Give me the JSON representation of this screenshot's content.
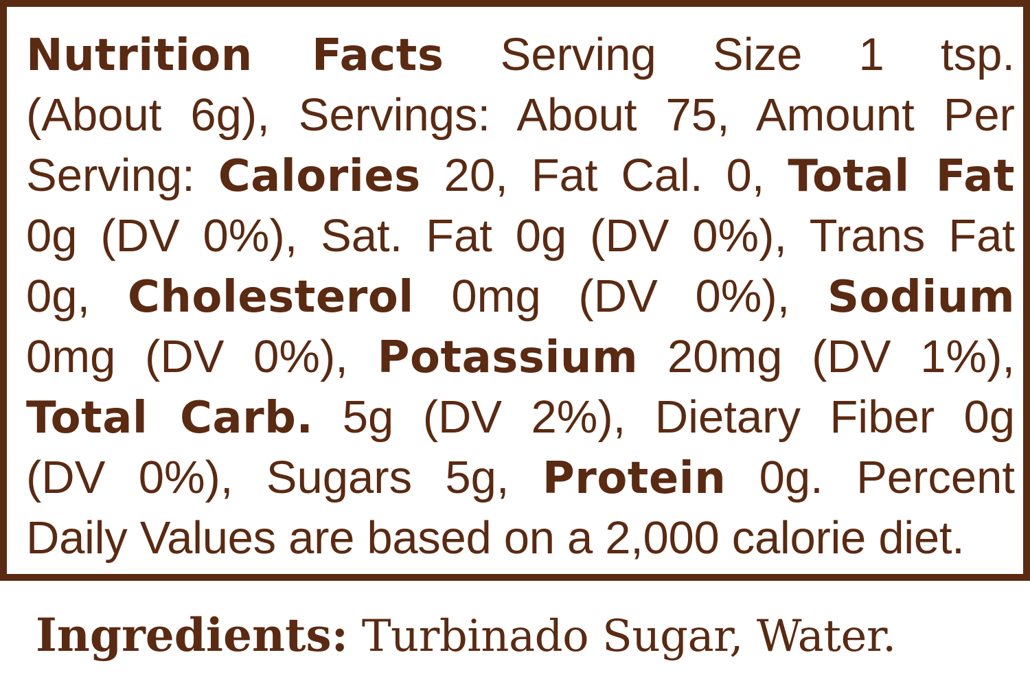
{
  "nutrition_panel": {
    "lines": [
      [
        {
          "text": "Nutrition Facts",
          "bold": true
        },
        {
          "text": " Serving Size 1 tsp.",
          "bold": false
        }
      ],
      [
        {
          "text": "(About 6g), Servings: About 75, Amount Per",
          "bold": false
        }
      ],
      [
        {
          "text": "Serving: ",
          "bold": false
        },
        {
          "text": "Calories",
          "bold": true
        },
        {
          "text": " 20, Fat Cal. 0, ",
          "bold": false
        },
        {
          "text": "Total Fat",
          "bold": true
        }
      ],
      [
        {
          "text": "0g (DV 0%), Sat. Fat 0g (DV 0%), Trans Fat",
          "bold": false
        }
      ],
      [
        {
          "text": "0g, ",
          "bold": false
        },
        {
          "text": "Cholesterol",
          "bold": true
        },
        {
          "text": " 0mg (DV 0%), ",
          "bold": false
        },
        {
          "text": "Sodium",
          "bold": true
        }
      ],
      [
        {
          "text": "0mg (DV 0%), ",
          "bold": false
        },
        {
          "text": "Potassium",
          "bold": true
        },
        {
          "text": " 20mg (DV 1%),",
          "bold": false
        }
      ],
      [
        {
          "text": "Total Carb.",
          "bold": true
        },
        {
          "text": " 5g (DV 2%), Dietary Fiber 0g",
          "bold": false
        }
      ],
      [
        {
          "text": "(DV 0%), Sugars 5g, ",
          "bold": false
        },
        {
          "text": "Protein",
          "bold": true
        },
        {
          "text": " 0g. Percent",
          "bold": false
        }
      ],
      [
        {
          "text": "Daily Values are based on a 2,000 calorie diet.",
          "bold": false
        }
      ]
    ]
  },
  "ingredients": {
    "label": "Ingredients:",
    "value": " Turbinado Sugar, Water."
  },
  "colors": {
    "text": "#5a2a12",
    "border": "#5a2a12",
    "background": "#ffffff"
  }
}
